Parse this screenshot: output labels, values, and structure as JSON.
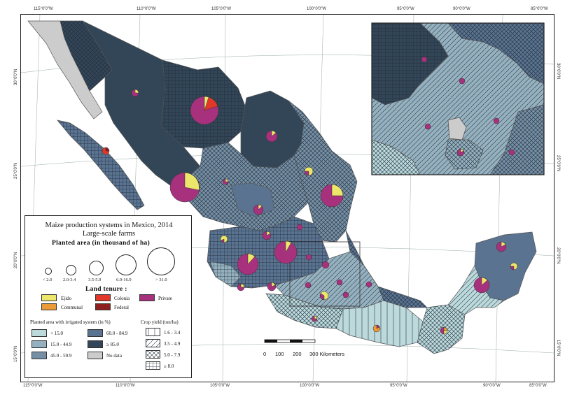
{
  "legend": {
    "title_line1": "Maize production systems in Mexico, 2014",
    "title_line2": "Large-scale farms",
    "planted_area_title": "Planted area (in thousand of ha)",
    "size_classes": [
      "< 2.0",
      "2.0-3.4",
      "3.5-5.9",
      "6.0-16.9",
      "> 31.0"
    ],
    "land_tenure_title": "Land tenure :",
    "tenure": [
      {
        "label": "Ejido",
        "color": "#ece66a"
      },
      {
        "label": "Colonia",
        "color": "#e2382a"
      },
      {
        "label": "Private",
        "color": "#a8317e"
      },
      {
        "label": "Communal",
        "color": "#eb9a35"
      },
      {
        "label": "Federal",
        "color": "#8e1f1f"
      }
    ],
    "irrigation_title": "Planted area with irrigated system (in %)",
    "irrigation": [
      {
        "label": "< 15.0",
        "color": "#bcd9dc"
      },
      {
        "label": "15.0 - 44.9",
        "color": "#95b1bf"
      },
      {
        "label": "45.0 - 59.9",
        "color": "#768fa4"
      },
      {
        "label": "60.0 - 84.9",
        "color": "#5a7390"
      },
      {
        "label": "≥ 85.0",
        "color": "#334658"
      },
      {
        "label": "No data",
        "color": "#cccccc"
      }
    ],
    "yield_title": "Crop yield (ton/ha)",
    "yield_classes": [
      "1.6 - 3.4",
      "3.5 - 4.9",
      "5.0 - 7.9",
      "≥ 8.0"
    ]
  },
  "scalebar": {
    "labels": [
      "0",
      "100",
      "200",
      "300 Kilometers"
    ]
  },
  "graticule": {
    "top": [
      "115°0'0\"W",
      "110°0'0\"W",
      "105°0'0\"W",
      "100°0'0\"W",
      "95°0'0\"W",
      "90°0'0\"W",
      "85°0'0\"W"
    ],
    "bottom": [
      "115°0'0\"W",
      "110°0'0\"W",
      "105°0'0\"W",
      "100°0'0\"W",
      "95°0'0\"W",
      "90°0'0\"W",
      "85°0'0\"W"
    ],
    "left": [
      "30°0'0\"N",
      "25°0'0\"N",
      "20°0'0\"N",
      "15°0'0\"N"
    ],
    "right": [
      "30°0'0\"N",
      "25°0'0\"N",
      "20°0'0\"N",
      "15°0'0\"N"
    ]
  }
}
